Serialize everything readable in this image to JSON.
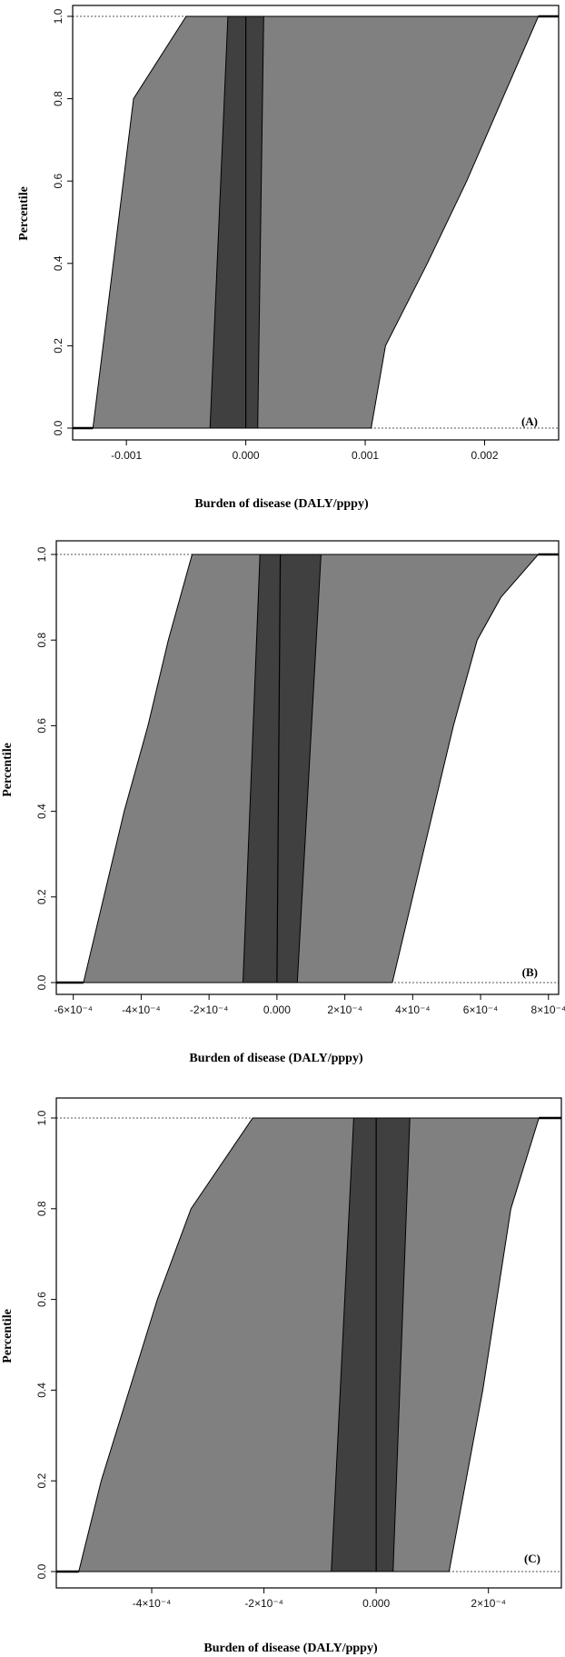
{
  "chart_data": [
    {
      "type": "area",
      "panel_label": "(A)",
      "xlabel": "Burden of disease (DALY/pppy)",
      "ylabel": "Percentile",
      "xlim": [
        -0.00145,
        0.00262
      ],
      "ylim": [
        0,
        1
      ],
      "xticks": [
        -0.001,
        0.0,
        0.001,
        0.002
      ],
      "xtick_labels": [
        "-0.001",
        "0.000",
        "0.001",
        "0.002"
      ],
      "yticks": [
        0,
        0.2,
        0.4,
        0.6,
        0.8,
        1.0
      ],
      "ytick_labels": [
        "0.0",
        "0.2",
        "0.4",
        "0.6",
        "0.8",
        "1.0"
      ],
      "outer_band": {
        "lower": [
          [
            -0.00128,
            0.0
          ],
          [
            -0.00111,
            0.4
          ],
          [
            -0.00094,
            0.8
          ],
          [
            -0.0005,
            1.0
          ]
        ],
        "upper": [
          [
            0.00105,
            0.0
          ],
          [
            0.00117,
            0.2
          ],
          [
            0.00152,
            0.4
          ],
          [
            0.00185,
            0.6
          ],
          [
            0.00215,
            0.8
          ],
          [
            0.00245,
            1.0
          ]
        ]
      },
      "inner_band": {
        "lower": [
          [
            -0.0003,
            0.0
          ],
          [
            -0.00015,
            1.0
          ]
        ],
        "upper": [
          [
            0.0001,
            0.0
          ],
          [
            0.00015,
            1.0
          ]
        ]
      },
      "median_line": [
        [
          0.0,
          0.0
        ],
        [
          0.0,
          1.0
        ]
      ],
      "tail_min": -0.00145,
      "tail_max": 0.00262
    },
    {
      "type": "area",
      "panel_label": "(B)",
      "xlabel": "Burden of disease (DALY/pppy)",
      "ylabel": "Percentile",
      "xlim": [
        -0.00065,
        0.00083
      ],
      "ylim": [
        0,
        1
      ],
      "xticks": [
        -0.0006,
        -0.0004,
        -0.0002,
        0.0,
        0.0002,
        0.0004,
        0.0006,
        0.0008
      ],
      "xtick_labels": [
        "-6×10⁻⁴",
        "-4×10⁻⁴",
        "-2×10⁻⁴",
        "0.000",
        "2×10⁻⁴",
        "4×10⁻⁴",
        "6×10⁻⁴",
        "8×10⁻⁴"
      ],
      "yticks": [
        0,
        0.2,
        0.4,
        0.6,
        0.8,
        1.0
      ],
      "ytick_labels": [
        "0.0",
        "0.2",
        "0.4",
        "0.6",
        "0.8",
        "1.0"
      ],
      "outer_band": {
        "lower": [
          [
            -0.00057,
            0.0
          ],
          [
            -0.00051,
            0.2
          ],
          [
            -0.00045,
            0.4
          ],
          [
            -0.00038,
            0.6
          ],
          [
            -0.00032,
            0.8
          ],
          [
            -0.00025,
            1.0
          ]
        ],
        "upper": [
          [
            0.00034,
            0.0
          ],
          [
            0.0004,
            0.2
          ],
          [
            0.00046,
            0.4
          ],
          [
            0.00052,
            0.6
          ],
          [
            0.00059,
            0.8
          ],
          [
            0.00066,
            0.9
          ],
          [
            0.00077,
            1.0
          ]
        ]
      },
      "inner_band": {
        "lower": [
          [
            -0.0001,
            0.0
          ],
          [
            -5e-05,
            1.0
          ]
        ],
        "upper": [
          [
            6e-05,
            0.0
          ],
          [
            0.00013,
            1.0
          ]
        ]
      },
      "median_line": [
        [
          0.0,
          0.0
        ],
        [
          1e-05,
          1.0
        ]
      ],
      "tail_min": -0.00065,
      "tail_max": 0.00083
    },
    {
      "type": "area",
      "panel_label": "(C)",
      "xlabel": "Burden of disease (DALY/pppy)",
      "ylabel": "Percentile",
      "xlim": [
        -0.00057,
        0.00033
      ],
      "ylim": [
        0,
        1
      ],
      "xticks": [
        -0.0004,
        -0.0002,
        0.0,
        0.0002
      ],
      "xtick_labels": [
        "-4×10⁻⁴",
        "-2×10⁻⁴",
        "0.000",
        "2×10⁻⁴"
      ],
      "yticks": [
        0,
        0.2,
        0.4,
        0.6,
        0.8,
        1.0
      ],
      "ytick_labels": [
        "0.0",
        "0.2",
        "0.4",
        "0.6",
        "0.8",
        "1.0"
      ],
      "outer_band": {
        "lower": [
          [
            -0.00053,
            0.0
          ],
          [
            -0.00049,
            0.2
          ],
          [
            -0.00044,
            0.4
          ],
          [
            -0.00039,
            0.6
          ],
          [
            -0.00033,
            0.8
          ],
          [
            -0.00022,
            1.0
          ]
        ],
        "upper": [
          [
            0.00013,
            0.0
          ],
          [
            0.00019,
            0.4
          ],
          [
            0.00024,
            0.8
          ],
          [
            0.00029,
            1.0
          ]
        ]
      },
      "inner_band": {
        "lower": [
          [
            -8e-05,
            0.0
          ],
          [
            -4e-05,
            1.0
          ]
        ],
        "upper": [
          [
            3e-05,
            0.0
          ],
          [
            6e-05,
            1.0
          ]
        ]
      },
      "median_line": [
        [
          0.0,
          0.0
        ],
        [
          0.0,
          1.0
        ]
      ],
      "tail_min": -0.00057,
      "tail_max": 0.00033
    }
  ]
}
